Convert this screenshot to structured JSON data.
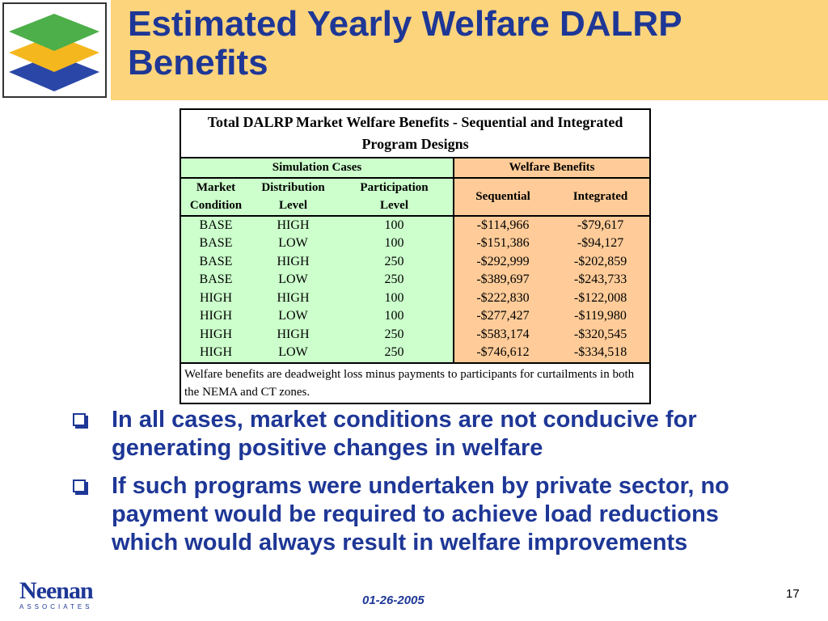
{
  "header": {
    "title_line1": "Estimated Yearly Welfare DALRP",
    "title_line2": "Benefits"
  },
  "table": {
    "caption": "Total DALRP Market Welfare Benefits - Sequential and Integrated Program Designs",
    "section_left": "Simulation Cases",
    "section_right": "Welfare Benefits",
    "col_market_1": "Market",
    "col_market_2": "Condition",
    "col_dist_1": "Distribution",
    "col_dist_2": "Level",
    "col_part_1": "Participation",
    "col_part_2": "Level",
    "col_seq": "Sequential",
    "col_int": "Integrated",
    "rows": [
      [
        "BASE",
        "HIGH",
        "100",
        "-$114,966",
        "-$79,617"
      ],
      [
        "BASE",
        "LOW",
        "100",
        "-$151,386",
        "-$94,127"
      ],
      [
        "BASE",
        "HIGH",
        "250",
        "-$292,999",
        "-$202,859"
      ],
      [
        "BASE",
        "LOW",
        "250",
        "-$389,697",
        "-$243,733"
      ],
      [
        "HIGH",
        "HIGH",
        "100",
        "-$222,830",
        "-$122,008"
      ],
      [
        "HIGH",
        "LOW",
        "100",
        "-$277,427",
        "-$119,980"
      ],
      [
        "HIGH",
        "HIGH",
        "250",
        "-$583,174",
        "-$320,545"
      ],
      [
        "HIGH",
        "LOW",
        "250",
        "-$746,612",
        "-$334,518"
      ]
    ],
    "note": "Welfare benefits are deadweight loss minus payments to participants for curtailments in both the NEMA and CT zones."
  },
  "bullets": [
    "In all cases, market conditions are not conducive for generating positive changes in welfare",
    "If such programs were undertaken by private sector, no payment would be required to achieve load reductions which would always result in welfare improvements"
  ],
  "footer": {
    "brand": "Neenan",
    "brand_sub": "ASSOCIATES",
    "date": "01-26-2005",
    "page": "17"
  },
  "colors": {
    "title_blue": "#1E3796",
    "title_band": "#FCD47C",
    "table_green": "#CCFFCC",
    "table_orange": "#FFCC99"
  },
  "icons": {
    "logo": "stacked-layers-logo-icon",
    "bullet": "checkbox-bullet-icon"
  }
}
